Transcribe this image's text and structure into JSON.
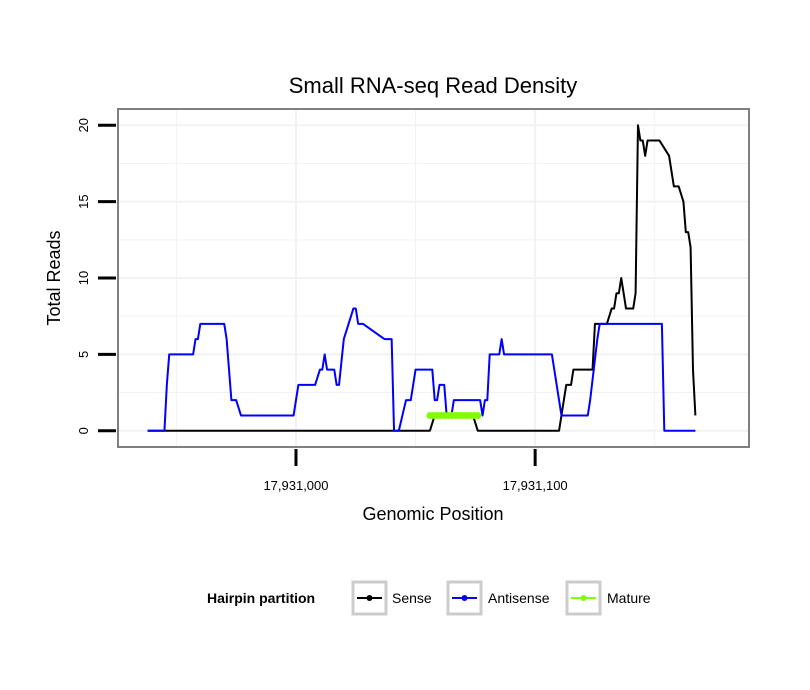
{
  "chart_data": {
    "type": "line",
    "title": "Small RNA-seq Read Density",
    "xlabel": "Genomic Position",
    "ylabel": "Total Reads",
    "xlim": [
      17930926,
      17931189
    ],
    "ylim": [
      -1,
      21
    ],
    "x_ticks": [
      17931000,
      17931100
    ],
    "x_tick_labels": [
      "17,931,000",
      "17,931,100"
    ],
    "y_ticks": [
      0,
      5,
      10,
      15,
      20
    ],
    "y_tick_labels": [
      "0",
      "5",
      "10",
      "15",
      "20"
    ],
    "grid": true,
    "legend": {
      "title": "Hairpin partition",
      "position": "bottom",
      "entries": [
        "Sense",
        "Antisense",
        "Mature"
      ]
    },
    "series": [
      {
        "name": "Sense",
        "color": "#000000",
        "x": [
          17930938,
          17931056,
          17931058,
          17931074,
          17931076,
          17931110,
          17931112,
          17931113,
          17931115,
          17931116,
          17931118,
          17931124,
          17931125,
          17931130,
          17931132,
          17931133,
          17931134,
          17931135,
          17931136,
          17931138,
          17931141,
          17931142,
          17931143,
          17931144,
          17931145,
          17931146,
          17931147,
          17931149,
          17931150,
          17931151,
          17931152,
          17931156,
          17931157,
          17931158,
          17931159,
          17931160,
          17931162,
          17931163,
          17931164,
          17931165,
          17931166,
          17931167
        ],
        "values": [
          0,
          0,
          1,
          1,
          0,
          0,
          2,
          3,
          3,
          4,
          4,
          4,
          7,
          7,
          8,
          8,
          9,
          9,
          10,
          8,
          8,
          9,
          20,
          19,
          19,
          18,
          19,
          19,
          19,
          19,
          19,
          18,
          17,
          16,
          16,
          16,
          15,
          13,
          13,
          12,
          4,
          1
        ]
      },
      {
        "name": "Antisense",
        "color": "#0000ff",
        "x": [
          17930938,
          17930945,
          17930946,
          17930947,
          17930957,
          17930958,
          17930959,
          17930960,
          17930970,
          17930971,
          17930972,
          17930973,
          17930975,
          17930977,
          17930981,
          17930986,
          17930999,
          17931001,
          17931002,
          17931003,
          17931005,
          17931008,
          17931010,
          17931011,
          17931012,
          17931013,
          17931014,
          17931016,
          17931017,
          17931018,
          17931020,
          17931024,
          17931025,
          17931026,
          17931028,
          17931037,
          17931039,
          17931040,
          17931041,
          17931043,
          17931046,
          17931047,
          17931048,
          17931050,
          17931057,
          17931058,
          17931059,
          17931060,
          17931062,
          17931063,
          17931065,
          17931066,
          17931067,
          17931068,
          17931075,
          17931077,
          17931078,
          17931079,
          17931080,
          17931081,
          17931085,
          17931086,
          17931087,
          17931088,
          17931089,
          17931090,
          17931091,
          17931092,
          17931107,
          17931108,
          17931109,
          17931110,
          17931111,
          17931122,
          17931123,
          17931126,
          17931127,
          17931128,
          17931129,
          17931130,
          17931131,
          17931133,
          17931153,
          17931154,
          17931167
        ],
        "values": [
          0,
          0,
          3,
          5,
          5,
          6,
          6,
          7,
          7,
          6,
          4,
          2,
          2,
          1,
          1,
          1,
          1,
          3,
          3,
          3,
          3,
          3,
          4,
          4,
          5,
          4,
          4,
          4,
          3,
          3,
          6,
          8,
          8,
          7,
          7,
          6,
          6,
          6,
          0,
          0,
          2,
          2,
          2,
          4,
          4,
          2,
          2,
          3,
          3,
          1,
          1,
          2,
          2,
          2,
          2,
          2,
          1,
          2,
          2,
          5,
          5,
          6,
          5,
          5,
          5,
          5,
          5,
          5,
          5,
          4,
          3,
          2,
          1,
          1,
          2,
          6,
          7,
          7,
          7,
          7,
          7,
          7,
          7,
          0,
          0
        ]
      },
      {
        "name": "Mature",
        "color": "#7fff00",
        "x": [
          17931056,
          17931076
        ],
        "values": [
          1,
          1
        ],
        "style": "thick-dotted"
      }
    ]
  }
}
